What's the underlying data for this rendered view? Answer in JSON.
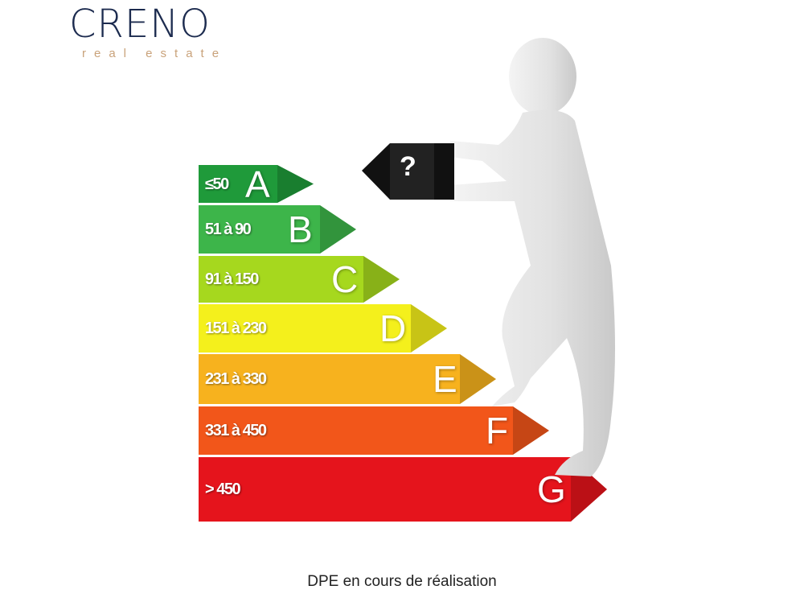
{
  "logo": {
    "name": "CRENO",
    "tagline": "real estate",
    "color": "#1c2b4f",
    "tagline_color": "#c9a27a"
  },
  "dpe_scale": [
    {
      "letter": "A",
      "range": "≤50",
      "color": "#1f9a3a"
    },
    {
      "letter": "B",
      "range": "51 à 90",
      "color": "#3db54a"
    },
    {
      "letter": "C",
      "range": "91 à 150",
      "color": "#a6d81e"
    },
    {
      "letter": "D",
      "range": "151 à 230",
      "color": "#f4f01c"
    },
    {
      "letter": "E",
      "range": "231 à 330",
      "color": "#f7b21e"
    },
    {
      "letter": "F",
      "range": "331 à 450",
      "color": "#f2561a"
    },
    {
      "letter": "G",
      "range": "> 450",
      "color": "#e5141c"
    }
  ],
  "question_box": {
    "symbol": "?"
  },
  "caption": "DPE en cours de réalisation"
}
